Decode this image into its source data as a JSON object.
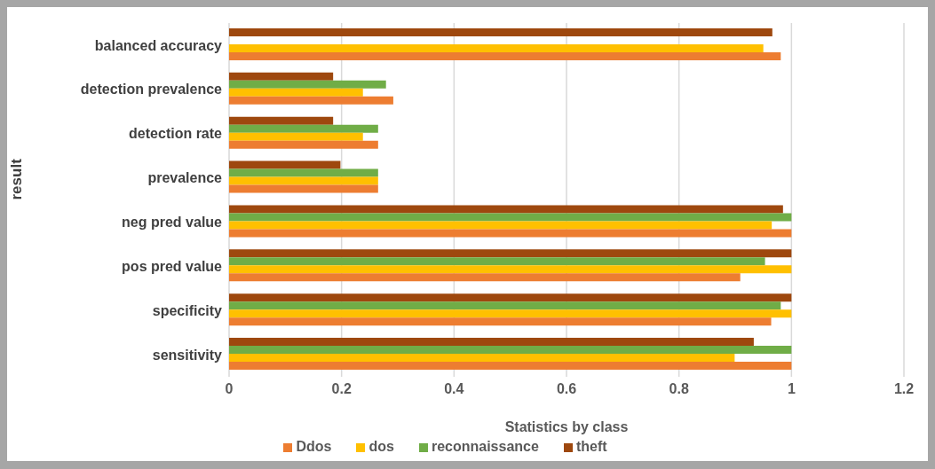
{
  "chart_data": {
    "type": "bar",
    "orientation": "horizontal",
    "xlabel": "Statistics by class",
    "ylabel": "result",
    "categories": [
      "balanced accuracy",
      "detection prevalence",
      "detection rate",
      "prevalence",
      "neg pred value",
      "pos pred value",
      "specificity",
      "sensitivity"
    ],
    "series": [
      {
        "name": "theft",
        "color": "#9e480e",
        "values": [
          0.966,
          0.185,
          0.185,
          0.198,
          0.985,
          1,
          1,
          0.933
        ]
      },
      {
        "name": "reconnaissance",
        "color": "#70ad47",
        "values": [
          null,
          0.279,
          0.265,
          0.265,
          1,
          0.953,
          0.981,
          1
        ]
      },
      {
        "name": "dos",
        "color": "#ffc000",
        "values": [
          0.95,
          0.238,
          0.238,
          0.265,
          0.965,
          1,
          1,
          0.899
        ]
      },
      {
        "name": "Ddos",
        "color": "#ed7d31",
        "values": [
          0.981,
          0.292,
          0.265,
          0.265,
          1,
          0.909,
          0.964,
          1
        ]
      }
    ],
    "xlim": [
      0,
      1.2
    ],
    "xticks": [
      0,
      0.2,
      0.4,
      0.6,
      0.8,
      1,
      1.2
    ],
    "grid": "x",
    "legend": "bottom"
  }
}
